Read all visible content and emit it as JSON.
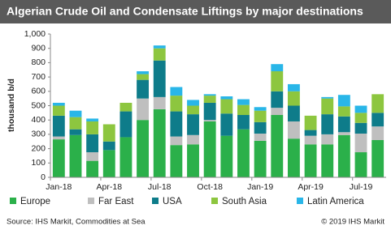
{
  "chart_data": {
    "type": "stacked-bar",
    "title": "Algerian Crude Oil and Condensate Liftings by major destinations",
    "ylabel": "thousand b/d",
    "source": "Source: IHS Markit, Commodities at Sea",
    "copyright": "© 2019 IHS Markit",
    "categories": [
      "Jan-18",
      null,
      null,
      "Apr-18",
      null,
      null,
      "Jul-18",
      null,
      null,
      "Oct-18",
      null,
      null,
      "Jan-19",
      null,
      null,
      "Apr-19",
      null,
      null,
      "Jul-19",
      null
    ],
    "series": [
      {
        "name": "Europe",
        "color": "#2bb04a",
        "values": [
          265,
          295,
          115,
          190,
          280,
          400,
          475,
          225,
          230,
          390,
          290,
          335,
          255,
          435,
          270,
          230,
          230,
          295,
          175,
          260
        ]
      },
      {
        "name": "Far East",
        "color": "#bfbfbf",
        "values": [
          20,
          0,
          60,
          0,
          0,
          150,
          85,
          60,
          65,
          10,
          0,
          0,
          50,
          50,
          120,
          60,
          70,
          20,
          130,
          95
        ]
      },
      {
        "name": "USA",
        "color": "#0e7c8a",
        "values": [
          145,
          40,
          125,
          60,
          180,
          130,
          255,
          175,
          145,
          120,
          155,
          100,
          80,
          115,
          110,
          40,
          140,
          110,
          75,
          95
        ]
      },
      {
        "name": "South Asia",
        "color": "#8dc63f",
        "values": [
          70,
          85,
          90,
          120,
          60,
          40,
          85,
          110,
          60,
          50,
          100,
          70,
          80,
          140,
          100,
          100,
          110,
          70,
          70,
          130
        ]
      },
      {
        "name": "Latin America",
        "color": "#29b6e8",
        "values": [
          20,
          45,
          20,
          0,
          0,
          20,
          20,
          60,
          40,
          10,
          20,
          40,
          25,
          50,
          50,
          0,
          10,
          80,
          50,
          0
        ]
      }
    ],
    "ylim": [
      0,
      1000
    ],
    "yticks": [
      0,
      100,
      200,
      300,
      400,
      500,
      600,
      700,
      800,
      900,
      {
        "value": 1000,
        "label": "1,000"
      }
    ]
  }
}
